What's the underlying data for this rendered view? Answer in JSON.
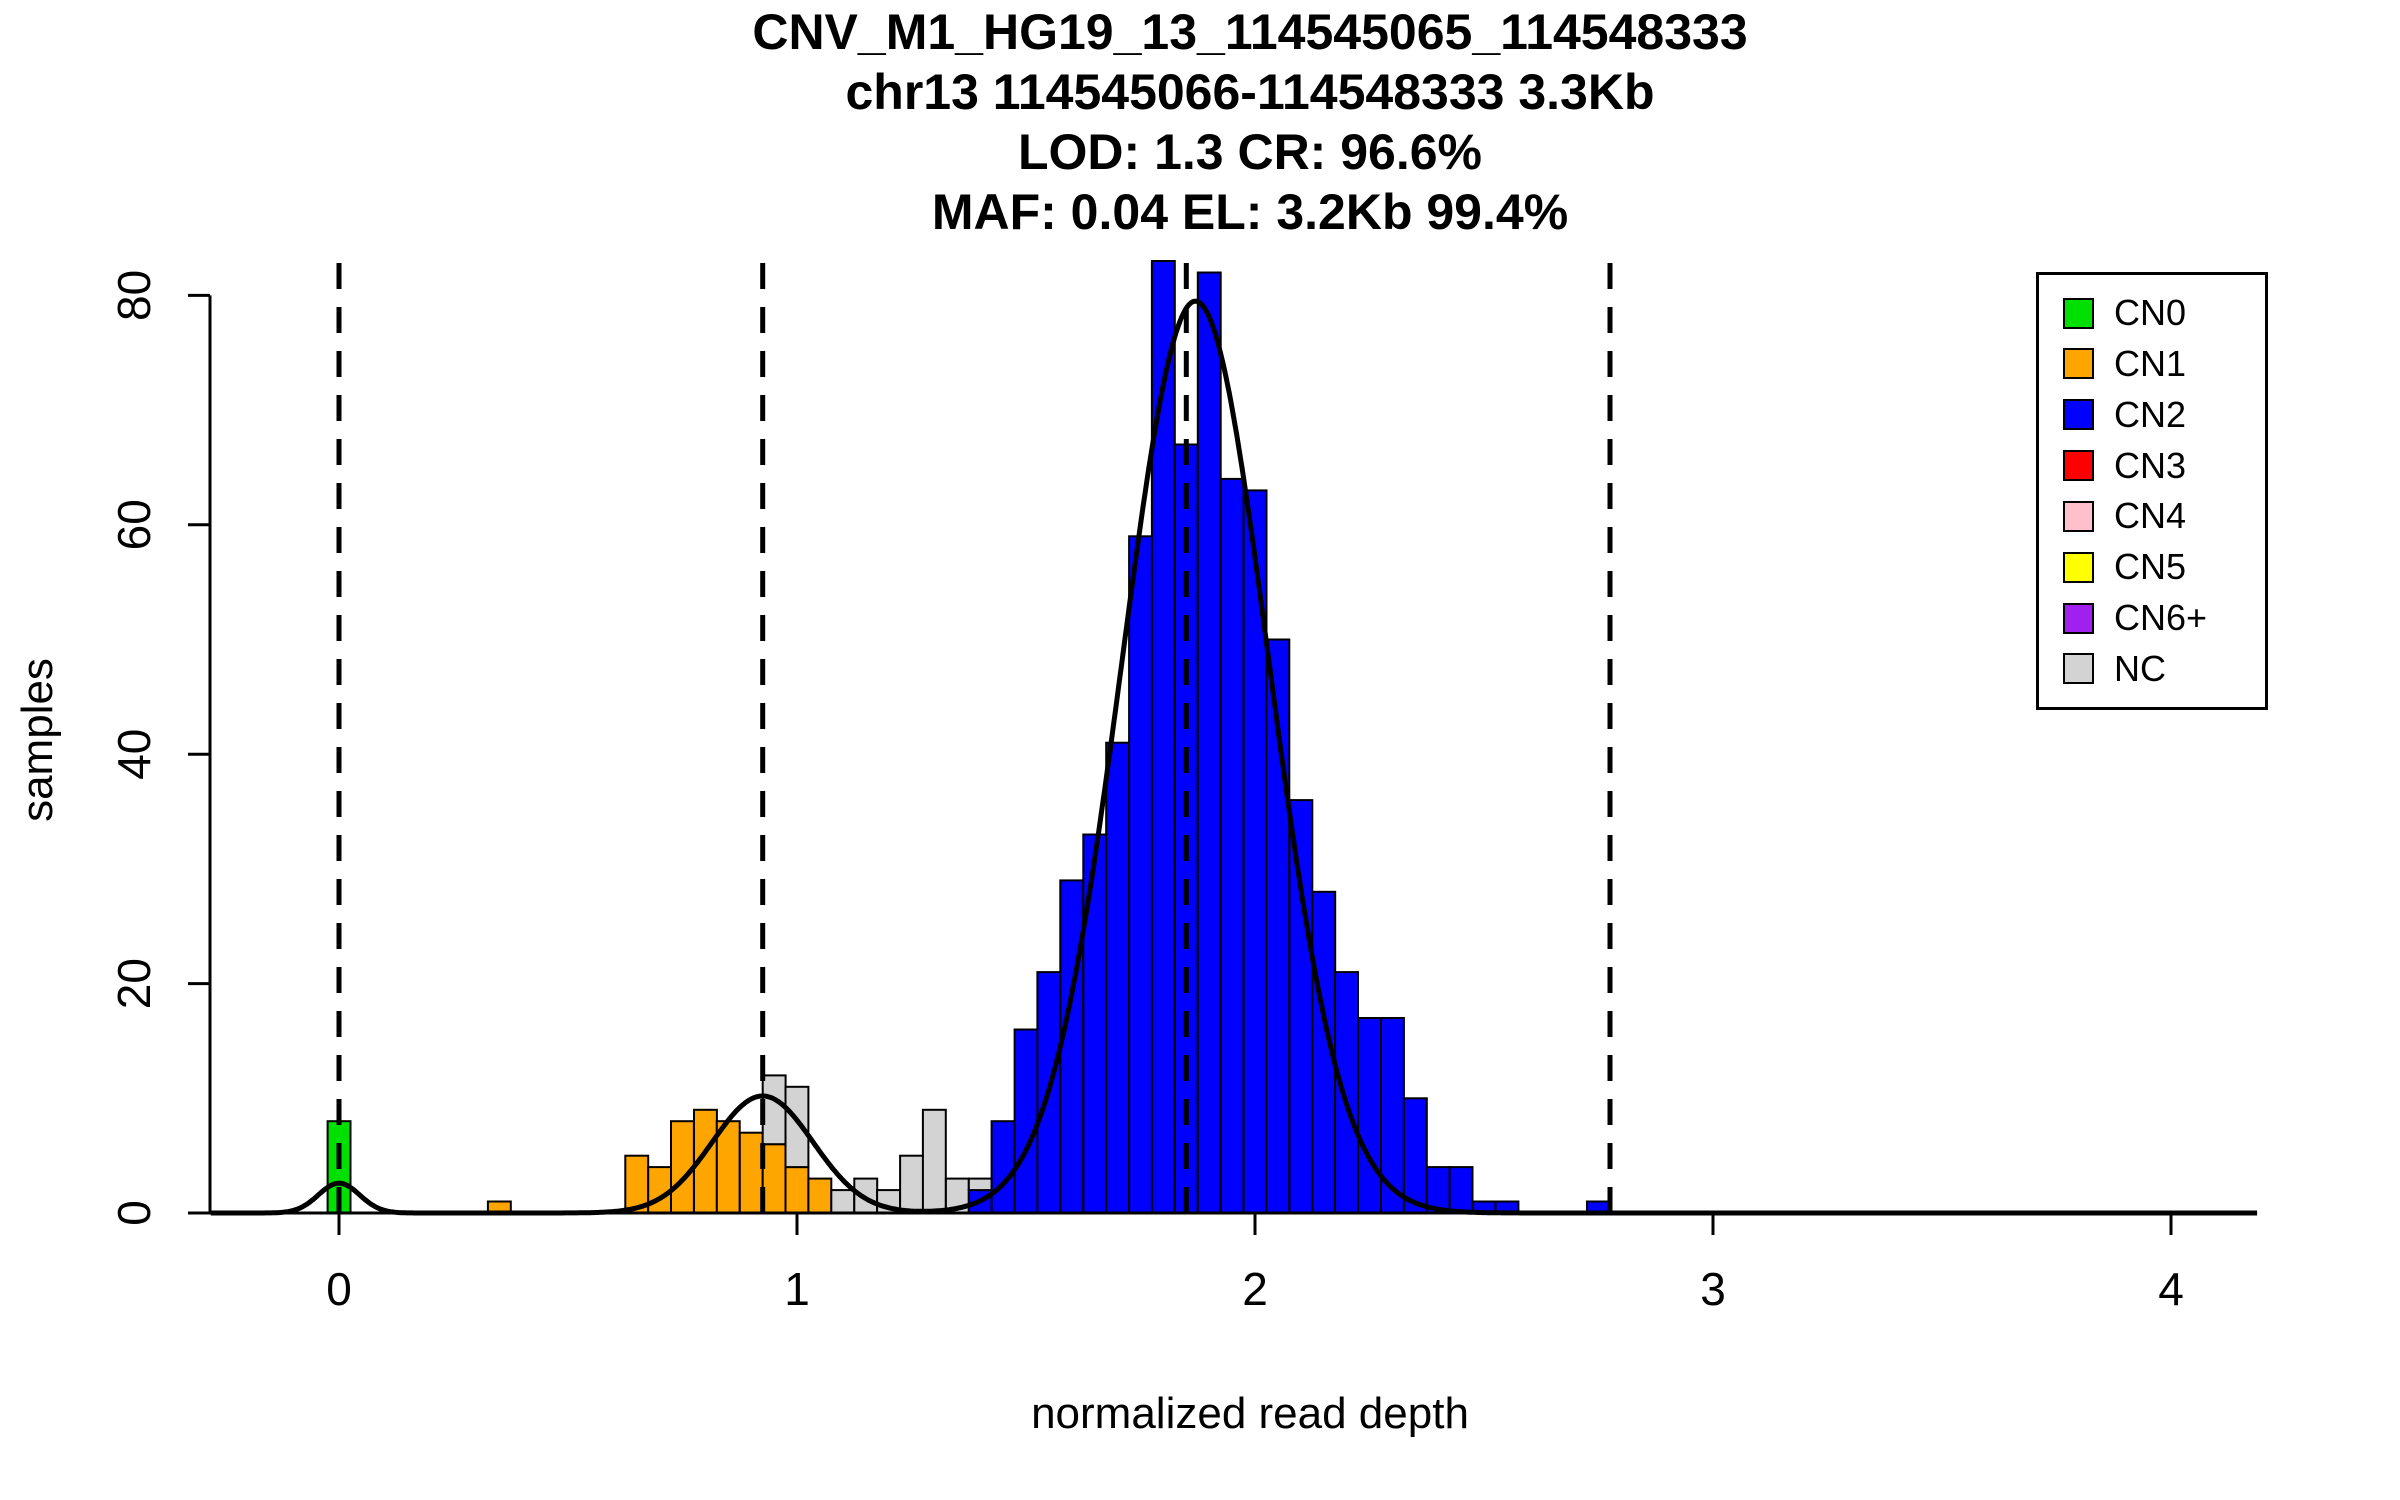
{
  "chart_data": {
    "type": "bar",
    "subtype": "stacked_histogram_with_density_curve",
    "title_lines": [
      "CNV_M1_HG19_13_114545065_114548333",
      "chr13 114545066-114548333 3.3Kb",
      "LOD: 1.3 CR: 96.6%",
      "MAF: 0.04 EL: 3.2Kb 99.4%"
    ],
    "xlabel": "normalized read depth",
    "ylabel": "samples",
    "xlim": [
      -0.28,
      4.19
    ],
    "ylim": [
      0,
      83.5
    ],
    "x_ticks": [
      "0",
      "1",
      "2",
      "3",
      "4"
    ],
    "y_ticks": [
      "0",
      "20",
      "40",
      "60",
      "80"
    ],
    "grid": false,
    "bin_width": 0.05,
    "legend_position": "top-right",
    "legend": [
      {
        "label": "CN0",
        "color": "#00E000"
      },
      {
        "label": "CN1",
        "color": "#FFA500"
      },
      {
        "label": "CN2",
        "color": "#0000FF"
      },
      {
        "label": "CN3",
        "color": "#FF0000"
      },
      {
        "label": "CN4",
        "color": "#FFC0CB"
      },
      {
        "label": "CN5",
        "color": "#FFFF00"
      },
      {
        "label": "CN6+",
        "color": "#A020F0"
      },
      {
        "label": "NC",
        "color": "#D3D3D3"
      }
    ],
    "cluster_mean_lines": [
      0,
      0.925,
      1.85,
      2.775
    ],
    "density_components": [
      {
        "mean": 0.0,
        "sd": 0.045,
        "peak": 2.6
      },
      {
        "mean": 0.925,
        "sd": 0.11,
        "peak": 10.2
      },
      {
        "mean": 1.87,
        "sd": 0.16,
        "peak": 79.5
      }
    ],
    "bins": [
      {
        "x": -0.025,
        "segments": [
          [
            "CN0",
            8
          ]
        ]
      },
      {
        "x": 0.325,
        "segments": [
          [
            "CN1",
            1
          ]
        ]
      },
      {
        "x": 0.625,
        "segments": [
          [
            "CN1",
            5
          ]
        ]
      },
      {
        "x": 0.675,
        "segments": [
          [
            "CN1",
            4
          ]
        ]
      },
      {
        "x": 0.725,
        "segments": [
          [
            "CN1",
            8
          ]
        ]
      },
      {
        "x": 0.775,
        "segments": [
          [
            "CN1",
            9
          ]
        ]
      },
      {
        "x": 0.825,
        "segments": [
          [
            "CN1",
            8
          ]
        ]
      },
      {
        "x": 0.875,
        "segments": [
          [
            "CN1",
            7
          ]
        ]
      },
      {
        "x": 0.925,
        "segments": [
          [
            "CN1",
            6
          ],
          [
            "NC",
            6
          ]
        ]
      },
      {
        "x": 0.975,
        "segments": [
          [
            "CN1",
            4
          ],
          [
            "NC",
            7
          ]
        ]
      },
      {
        "x": 1.025,
        "segments": [
          [
            "CN1",
            3
          ]
        ]
      },
      {
        "x": 1.075,
        "segments": [
          [
            "NC",
            2
          ]
        ]
      },
      {
        "x": 1.125,
        "segments": [
          [
            "NC",
            3
          ]
        ]
      },
      {
        "x": 1.175,
        "segments": [
          [
            "NC",
            2
          ]
        ]
      },
      {
        "x": 1.225,
        "segments": [
          [
            "NC",
            5
          ]
        ]
      },
      {
        "x": 1.275,
        "segments": [
          [
            "NC",
            9
          ]
        ]
      },
      {
        "x": 1.325,
        "segments": [
          [
            "NC",
            3
          ]
        ]
      },
      {
        "x": 1.375,
        "segments": [
          [
            "CN2",
            2
          ],
          [
            "NC",
            1
          ]
        ]
      },
      {
        "x": 1.425,
        "segments": [
          [
            "CN2",
            8
          ]
        ]
      },
      {
        "x": 1.475,
        "segments": [
          [
            "CN2",
            16
          ]
        ]
      },
      {
        "x": 1.525,
        "segments": [
          [
            "CN2",
            21
          ]
        ]
      },
      {
        "x": 1.575,
        "segments": [
          [
            "CN2",
            29
          ]
        ]
      },
      {
        "x": 1.625,
        "segments": [
          [
            "CN2",
            33
          ]
        ]
      },
      {
        "x": 1.675,
        "segments": [
          [
            "CN2",
            41
          ]
        ]
      },
      {
        "x": 1.725,
        "segments": [
          [
            "CN2",
            59
          ]
        ]
      },
      {
        "x": 1.775,
        "segments": [
          [
            "CN2",
            83
          ]
        ]
      },
      {
        "x": 1.825,
        "segments": [
          [
            "CN2",
            67
          ]
        ]
      },
      {
        "x": 1.875,
        "segments": [
          [
            "CN2",
            82
          ]
        ]
      },
      {
        "x": 1.925,
        "segments": [
          [
            "CN2",
            64
          ]
        ]
      },
      {
        "x": 1.975,
        "segments": [
          [
            "CN2",
            63
          ]
        ]
      },
      {
        "x": 2.025,
        "segments": [
          [
            "CN2",
            50
          ]
        ]
      },
      {
        "x": 2.075,
        "segments": [
          [
            "CN2",
            36
          ]
        ]
      },
      {
        "x": 2.125,
        "segments": [
          [
            "CN2",
            28
          ]
        ]
      },
      {
        "x": 2.175,
        "segments": [
          [
            "CN2",
            21
          ]
        ]
      },
      {
        "x": 2.225,
        "segments": [
          [
            "CN2",
            17
          ]
        ]
      },
      {
        "x": 2.275,
        "segments": [
          [
            "CN2",
            17
          ]
        ]
      },
      {
        "x": 2.325,
        "segments": [
          [
            "CN2",
            10
          ]
        ]
      },
      {
        "x": 2.375,
        "segments": [
          [
            "CN2",
            4
          ]
        ]
      },
      {
        "x": 2.425,
        "segments": [
          [
            "CN2",
            4
          ]
        ]
      },
      {
        "x": 2.475,
        "segments": [
          [
            "CN2",
            1
          ]
        ]
      },
      {
        "x": 2.525,
        "segments": [
          [
            "CN2",
            1
          ]
        ]
      },
      {
        "x": 2.725,
        "segments": [
          [
            "CN2",
            1
          ]
        ]
      }
    ]
  }
}
